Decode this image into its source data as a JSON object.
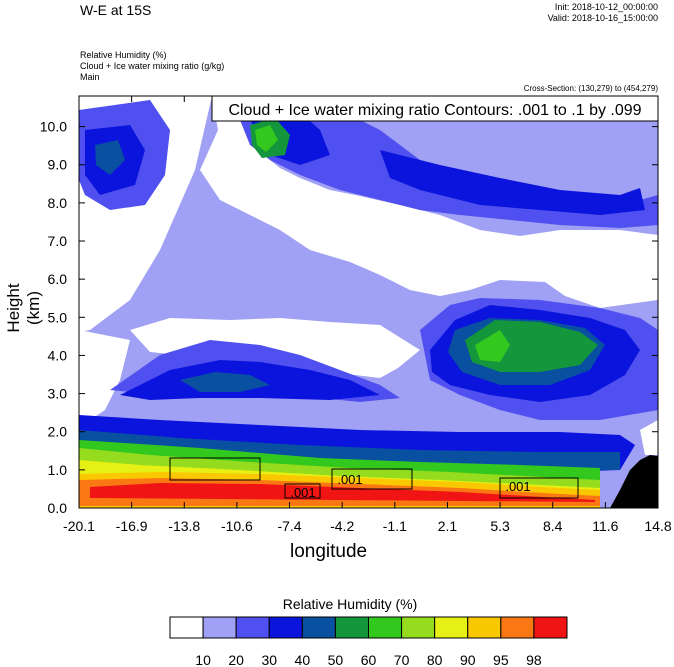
{
  "header": {
    "title": "W-E at 15S",
    "init": "Init: 2018-10-12_00:00:00",
    "valid": "Valid: 2018-10-16_15:00:00",
    "field1": "Relative Humidity   (%)",
    "field2": "Cloud + Ice water mixing ratio   (g/kg)",
    "field3": "Main",
    "cross_section": "Cross-Section: (130,279) to (454,279)"
  },
  "chart_data": {
    "type": "contour",
    "title": "Cloud + Ice water mixing ratio Contours: .001 to .1 by .099",
    "xlabel": "longitude",
    "ylabel": "Height (km)",
    "x_ticks": [
      "-20.1",
      "-16.9",
      "-13.8",
      "-10.6",
      "-7.4",
      "-4.2",
      "-1.1",
      "2.1",
      "5.3",
      "8.4",
      "11.6",
      "14.8"
    ],
    "y_ticks": [
      "0.0",
      "1.0",
      "2.0",
      "3.0",
      "4.0",
      "5.0",
      "6.0",
      "7.0",
      "8.0",
      "9.0",
      "10.0"
    ],
    "xlim": [
      -20.1,
      14.8
    ],
    "ylim": [
      0,
      10.8
    ],
    "contour_labels": [
      ".001",
      ".001",
      ".001"
    ],
    "colorbar": {
      "title": "Relative Humidity  (%)",
      "levels": [
        "10",
        "20",
        "30",
        "40",
        "50",
        "60",
        "70",
        "80",
        "90",
        "95",
        "98"
      ],
      "colors": [
        "#ffffff",
        "#a0a0f5",
        "#5050f0",
        "#0a14dc",
        "#0a50a0",
        "#14963c",
        "#32c81e",
        "#96dc1e",
        "#e6f014",
        "#fac800",
        "#fa7814",
        "#f01414"
      ]
    }
  }
}
